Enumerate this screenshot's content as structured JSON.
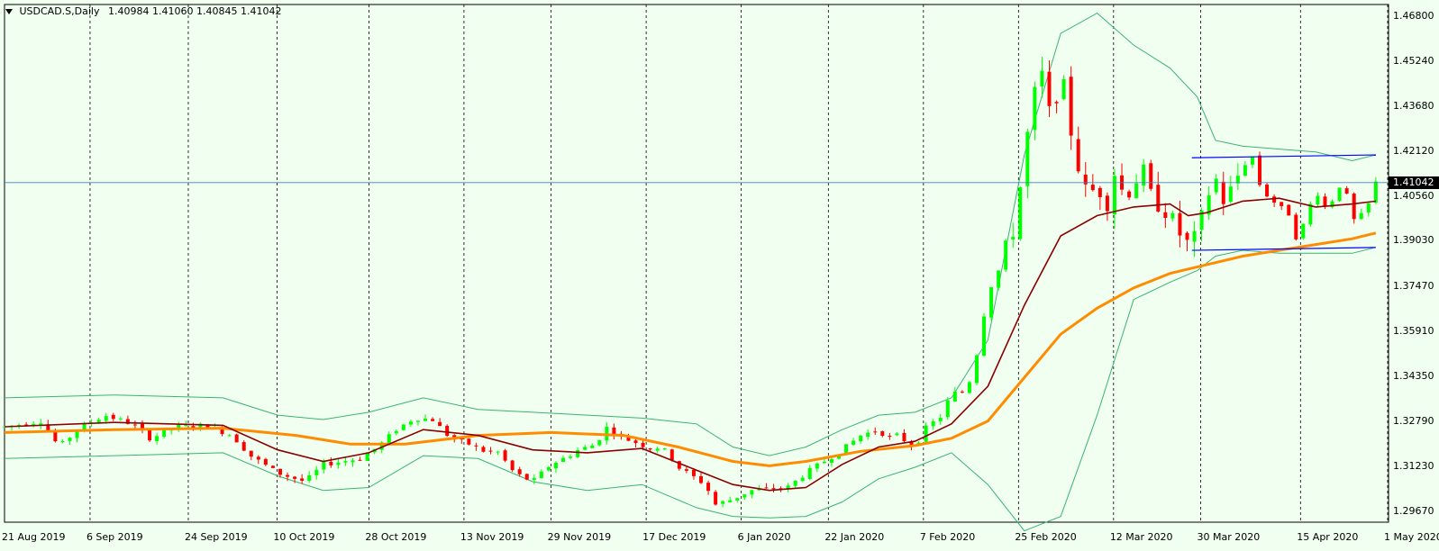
{
  "header": {
    "symbol": "USDCAD.S,Daily",
    "ohlc": "1.40984 1.41060 1.40845 1.41042"
  },
  "colors": {
    "background": "#f0fff0",
    "bull": "#00ff00",
    "bear": "#ff0000",
    "bollinger": "#3cb371",
    "ma_fast": "#8b0000",
    "ma_slow": "#ff8c00",
    "support_resistance": "#0000ff",
    "current_price_line": "#4682b4"
  },
  "chart_data": {
    "type": "candlestick",
    "symbol": "USDCAD",
    "timeframe": "Daily",
    "y_axis_ticks": [
      "1.46800",
      "1.45240",
      "1.43680",
      "1.42120",
      "1.40560",
      "1.39030",
      "1.37470",
      "1.35910",
      "1.34350",
      "1.32790",
      "1.31230",
      "1.29670"
    ],
    "current_price": "1.41042",
    "x_axis_labels": [
      "21 Aug 2019",
      "6 Sep 2019",
      "24 Sep 2019",
      "10 Oct 2019",
      "28 Oct 2019",
      "13 Nov 2019",
      "29 Nov 2019",
      "17 Dec 2019",
      "6 Jan 2020",
      "22 Jan 2020",
      "7 Feb 2020",
      "25 Feb 2020",
      "12 Mar 2020",
      "30 Mar 2020",
      "15 Apr 2020",
      "1 May 2020"
    ],
    "ylim": [
      1.293,
      1.472
    ],
    "price_path": [
      [
        0,
        1.326
      ],
      [
        10,
        1.327
      ],
      [
        20,
        1.328
      ],
      [
        30,
        1.319
      ],
      [
        40,
        1.325
      ],
      [
        55,
        1.33
      ],
      [
        70,
        1.327
      ],
      [
        80,
        1.322
      ],
      [
        95,
        1.326
      ],
      [
        110,
        1.3265
      ],
      [
        125,
        1.323
      ],
      [
        135,
        1.316
      ],
      [
        150,
        1.31
      ],
      [
        165,
        1.307
      ],
      [
        175,
        1.313
      ],
      [
        195,
        1.315
      ],
      [
        205,
        1.319
      ],
      [
        215,
        1.325
      ],
      [
        225,
        1.329
      ],
      [
        235,
        1.3285
      ],
      [
        245,
        1.322
      ],
      [
        255,
        1.32
      ],
      [
        265,
        1.317
      ],
      [
        270,
        1.318
      ],
      [
        280,
        1.31
      ],
      [
        290,
        1.307
      ],
      [
        300,
        1.313
      ],
      [
        310,
        1.316
      ],
      [
        315,
        1.318
      ],
      [
        325,
        1.32
      ],
      [
        330,
        1.326
      ],
      [
        340,
        1.322
      ],
      [
        345,
        1.321
      ],
      [
        355,
        1.3185
      ],
      [
        360,
        1.319
      ],
      [
        365,
        1.3165
      ],
      [
        370,
        1.312
      ],
      [
        380,
        1.308
      ],
      [
        385,
        1.306
      ],
      [
        390,
        1.299
      ],
      [
        400,
        1.301
      ],
      [
        410,
        1.304
      ],
      [
        420,
        1.3045
      ],
      [
        430,
        1.305
      ],
      [
        440,
        1.31
      ],
      [
        450,
        1.314
      ],
      [
        460,
        1.318
      ],
      [
        470,
        1.323
      ],
      [
        480,
        1.325
      ],
      [
        485,
        1.322
      ],
      [
        490,
        1.323
      ],
      [
        495,
        1.321
      ],
      [
        500,
        1.319
      ],
      [
        505,
        1.325
      ],
      [
        515,
        1.33
      ],
      [
        520,
        1.338
      ],
      [
        525,
        1.337
      ],
      [
        530,
        1.342
      ],
      [
        535,
        1.354
      ],
      [
        540,
        1.373
      ],
      [
        545,
        1.378
      ],
      [
        550,
        1.39
      ],
      [
        555,
        1.395
      ],
      [
        560,
        1.42
      ],
      [
        565,
        1.44
      ],
      [
        570,
        1.448
      ],
      [
        575,
        1.43
      ],
      [
        580,
        1.45
      ],
      [
        585,
        1.43
      ],
      [
        590,
        1.415
      ],
      [
        595,
        1.405
      ],
      [
        600,
        1.41
      ],
      [
        605,
        1.402
      ],
      [
        610,
        1.415
      ],
      [
        615,
        1.405
      ],
      [
        620,
        1.41
      ],
      [
        625,
        1.415
      ],
      [
        630,
        1.405
      ],
      [
        640,
        1.399
      ],
      [
        645,
        1.393
      ],
      [
        650,
        1.389
      ],
      [
        655,
        1.392
      ],
      [
        660,
        1.405
      ],
      [
        665,
        1.412
      ],
      [
        670,
        1.403
      ],
      [
        675,
        1.41
      ],
      [
        680,
        1.416
      ],
      [
        685,
        1.42
      ],
      [
        690,
        1.408
      ],
      [
        695,
        1.405
      ],
      [
        700,
        1.402
      ],
      [
        705,
        1.4
      ],
      [
        710,
        1.39
      ],
      [
        715,
        1.399
      ],
      [
        720,
        1.408
      ],
      [
        725,
        1.402
      ],
      [
        730,
        1.405
      ],
      [
        735,
        1.412
      ],
      [
        740,
        1.397
      ],
      [
        745,
        1.399
      ],
      [
        750,
        1.404
      ],
      [
        753,
        1.4104
      ]
    ],
    "ma_fast": [
      [
        0,
        1.326
      ],
      [
        60,
        1.3275
      ],
      [
        120,
        1.3265
      ],
      [
        150,
        1.318
      ],
      [
        175,
        1.314
      ],
      [
        200,
        1.317
      ],
      [
        230,
        1.325
      ],
      [
        260,
        1.323
      ],
      [
        290,
        1.318
      ],
      [
        320,
        1.317
      ],
      [
        350,
        1.3185
      ],
      [
        380,
        1.311
      ],
      [
        400,
        1.306
      ],
      [
        420,
        1.304
      ],
      [
        440,
        1.305
      ],
      [
        460,
        1.313
      ],
      [
        480,
        1.319
      ],
      [
        500,
        1.321
      ],
      [
        520,
        1.327
      ],
      [
        540,
        1.34
      ],
      [
        560,
        1.368
      ],
      [
        580,
        1.392
      ],
      [
        600,
        1.399
      ],
      [
        620,
        1.402
      ],
      [
        640,
        1.403
      ],
      [
        650,
        1.399
      ],
      [
        660,
        1.4
      ],
      [
        680,
        1.404
      ],
      [
        700,
        1.405
      ],
      [
        720,
        1.402
      ],
      [
        740,
        1.403
      ],
      [
        753,
        1.404
      ]
    ],
    "ma_slow": [
      [
        0,
        1.324
      ],
      [
        60,
        1.325
      ],
      [
        120,
        1.3255
      ],
      [
        160,
        1.323
      ],
      [
        190,
        1.32
      ],
      [
        220,
        1.32
      ],
      [
        260,
        1.323
      ],
      [
        300,
        1.324
      ],
      [
        340,
        1.323
      ],
      [
        370,
        1.319
      ],
      [
        400,
        1.314
      ],
      [
        420,
        1.3125
      ],
      [
        440,
        1.314
      ],
      [
        470,
        1.3175
      ],
      [
        500,
        1.3195
      ],
      [
        520,
        1.322
      ],
      [
        540,
        1.328
      ],
      [
        560,
        1.343
      ],
      [
        580,
        1.358
      ],
      [
        600,
        1.367
      ],
      [
        620,
        1.374
      ],
      [
        640,
        1.379
      ],
      [
        660,
        1.382
      ],
      [
        680,
        1.385
      ],
      [
        700,
        1.387
      ],
      [
        720,
        1.389
      ],
      [
        740,
        1.391
      ],
      [
        753,
        1.393
      ]
    ],
    "bollinger_upper": [
      [
        0,
        1.336
      ],
      [
        60,
        1.337
      ],
      [
        120,
        1.336
      ],
      [
        150,
        1.33
      ],
      [
        175,
        1.3285
      ],
      [
        200,
        1.331
      ],
      [
        230,
        1.336
      ],
      [
        260,
        1.332
      ],
      [
        290,
        1.331
      ],
      [
        320,
        1.33
      ],
      [
        350,
        1.329
      ],
      [
        380,
        1.327
      ],
      [
        400,
        1.319
      ],
      [
        420,
        1.316
      ],
      [
        440,
        1.319
      ],
      [
        460,
        1.325
      ],
      [
        480,
        1.33
      ],
      [
        500,
        1.331
      ],
      [
        520,
        1.336
      ],
      [
        540,
        1.356
      ],
      [
        560,
        1.42
      ],
      [
        580,
        1.462
      ],
      [
        600,
        1.469
      ],
      [
        620,
        1.458
      ],
      [
        640,
        1.45
      ],
      [
        655,
        1.44
      ],
      [
        665,
        1.425
      ],
      [
        680,
        1.423
      ],
      [
        700,
        1.422
      ],
      [
        720,
        1.421
      ],
      [
        740,
        1.418
      ],
      [
        753,
        1.42
      ]
    ],
    "bollinger_lower": [
      [
        0,
        1.315
      ],
      [
        60,
        1.316
      ],
      [
        120,
        1.317
      ],
      [
        150,
        1.309
      ],
      [
        175,
        1.304
      ],
      [
        200,
        1.305
      ],
      [
        230,
        1.316
      ],
      [
        260,
        1.315
      ],
      [
        290,
        1.307
      ],
      [
        320,
        1.304
      ],
      [
        350,
        1.306
      ],
      [
        380,
        1.298
      ],
      [
        400,
        1.295
      ],
      [
        420,
        1.2945
      ],
      [
        440,
        1.295
      ],
      [
        460,
        1.3
      ],
      [
        480,
        1.308
      ],
      [
        500,
        1.312
      ],
      [
        520,
        1.317
      ],
      [
        540,
        1.306
      ],
      [
        560,
        1.29
      ],
      [
        580,
        1.295
      ],
      [
        600,
        1.33
      ],
      [
        620,
        1.37
      ],
      [
        640,
        1.376
      ],
      [
        655,
        1.38
      ],
      [
        665,
        1.385
      ],
      [
        680,
        1.387
      ],
      [
        700,
        1.386
      ],
      [
        720,
        1.386
      ],
      [
        740,
        1.386
      ],
      [
        753,
        1.388
      ]
    ],
    "horizontal_lines": [
      {
        "y1": 1.419,
        "y2": 1.42,
        "x1": 652,
        "x2": 753
      },
      {
        "y1": 1.387,
        "y2": 1.388,
        "x1": 652,
        "x2": 753
      }
    ],
    "x_tick_positions": [
      0,
      54,
      116,
      172,
      230,
      290,
      345,
      405,
      465,
      520,
      580,
      640,
      700,
      755,
      818,
      873
    ]
  }
}
